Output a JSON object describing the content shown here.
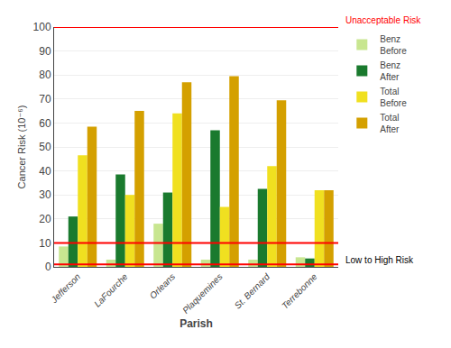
{
  "chart_data": {
    "type": "bar",
    "categories": [
      "Jefferson",
      "LaFourche",
      "Orleans",
      "Plaquemines",
      "St. Bernard",
      "Terrebonne"
    ],
    "series": [
      {
        "name": "Benz\nBefore",
        "color": "#c8e690",
        "values": [
          8.5,
          3.0,
          18.0,
          3.0,
          3.0,
          4.0
        ]
      },
      {
        "name": "Benz\nAfter",
        "color": "#1a7a2e",
        "values": [
          21.0,
          38.5,
          31.0,
          57.0,
          32.5,
          3.5
        ]
      },
      {
        "name": "Total\nBefore",
        "color": "#f0e020",
        "values": [
          46.5,
          30.0,
          64.0,
          25.0,
          42.0,
          32.0
        ]
      },
      {
        "name": "Total\nAfter",
        "color": "#d4a000",
        "values": [
          58.5,
          65.0,
          77.0,
          79.5,
          69.5,
          32.0
        ]
      }
    ],
    "xlabel": "Parish",
    "ylabel": "Cancer Risk (10⁻⁶)",
    "ylim": [
      0,
      100
    ],
    "yticks": [
      0,
      10,
      20,
      30,
      40,
      50,
      60,
      70,
      80,
      90,
      100
    ],
    "grid": true,
    "legend": "right",
    "reference_lines": {
      "values": [
        100,
        10,
        1
      ],
      "color": "#ff0000"
    },
    "annotations": [
      "Unacceptable Risk",
      "Low to High Risk"
    ]
  }
}
